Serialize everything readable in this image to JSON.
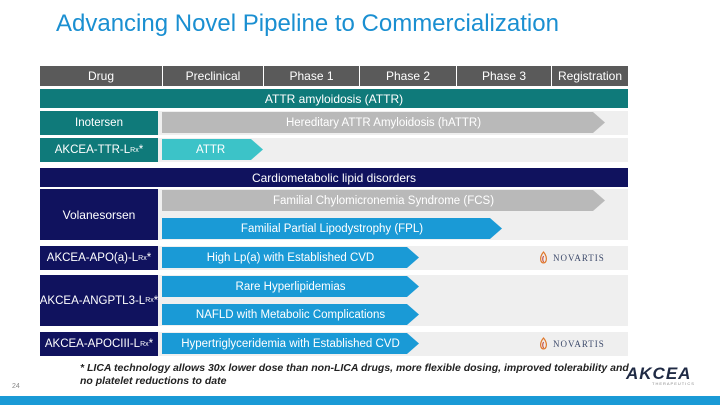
{
  "title": "Advancing Novel Pipeline to Commercialization",
  "header": {
    "columns": [
      "Drug",
      "Preclinical",
      "Phase 1",
      "Phase 2",
      "Phase 3",
      "Registration"
    ]
  },
  "sections": {
    "attr": "ATTR amyloidosis (ATTR)",
    "cardio": "Cardiometabolic lipid disorders"
  },
  "drugs": {
    "inotersen": "Inotersen",
    "ttr_prefix": "AKCEA-TTR-L",
    "ttr_sub": "Rx",
    "ttr_suffix": " *",
    "volanesorsen": "Volanesorsen",
    "apoa_prefix": "AKCEA-APO(a)-L",
    "apoa_sub": "Rx",
    "apoa_suffix": "*",
    "angptl3_prefix": "AKCEA-ANGPTL3-L",
    "angptl3_sub": "Rx",
    "angptl3_suffix": "*",
    "apociii_prefix": "AKCEA-APOCIII-L",
    "apociii_sub": "Rx",
    "apociii_suffix": "*"
  },
  "programs": {
    "hattr": "Hereditary ATTR Amyloidosis (hATTR)",
    "attr": "ATTR",
    "fcs": "Familial Chylomicronemia Syndrome (FCS)",
    "fpl": "Familial Partial Lipodystrophy (FPL)",
    "lpa": "High Lp(a) with Established CVD",
    "rare": "Rare Hyperlipidemias",
    "nafld": "NAFLD with Metabolic Complications",
    "htg": "Hypertriglyceridemia with Established CVD"
  },
  "partner": "NOVARTIS",
  "footnote": "* LICA technology allows 30x lower dose than non-LICA drugs, more flexible dosing, improved tolerability and no platelet reductions to date",
  "page_number": "24",
  "logo": {
    "name": "AKCEA",
    "tagline": "THERAPEUTICS"
  },
  "colors": {
    "title": "#1a8fd1",
    "header": "#5a5a5a",
    "teal": "#0f7a7a",
    "navy": "#10125e",
    "arrow_gray": "#b9b9b9",
    "arrow_cyan": "#3cc3c8",
    "arrow_blue": "#1a9ad6"
  }
}
